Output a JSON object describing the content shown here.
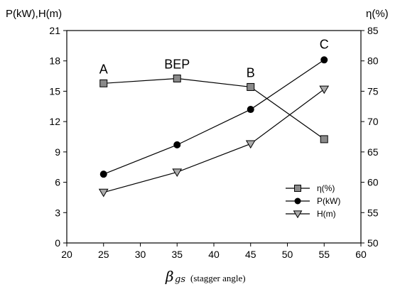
{
  "chart_data": {
    "type": "line",
    "x": [
      25,
      35,
      45,
      55
    ],
    "xlim": [
      20,
      60
    ],
    "x_ticks": [
      "20",
      "25",
      "30",
      "35",
      "40",
      "45",
      "50",
      "55",
      "60"
    ],
    "xlabel": {
      "symbol": "β",
      "subscript": "gs",
      "note": "(stagger angle)"
    },
    "ylabel_left": "P(kW),H(m)",
    "ylim_left": [
      0,
      21
    ],
    "y_ticks_left": [
      "0",
      "3",
      "6",
      "9",
      "12",
      "15",
      "18",
      "21"
    ],
    "ylabel_right": "η(%)",
    "ylim_right": [
      50,
      85
    ],
    "y_ticks_right": [
      "50",
      "55",
      "60",
      "65",
      "70",
      "75",
      "80",
      "85"
    ],
    "grid": false,
    "legend_position": "lower-right",
    "series": [
      {
        "name": "η(%)",
        "axis": "right",
        "marker": "square",
        "color": "#000000",
        "values": [
          76.3,
          77.1,
          75.7,
          67.1
        ]
      },
      {
        "name": "P(kW)",
        "axis": "left",
        "marker": "circle",
        "color": "#000000",
        "values": [
          6.8,
          9.7,
          13.2,
          18.1
        ]
      },
      {
        "name": "H(m)",
        "axis": "left",
        "marker": "triangle-down",
        "color": "#000000",
        "values": [
          5.0,
          7.0,
          9.8,
          15.2
        ]
      }
    ],
    "annotations": [
      {
        "text": "A",
        "x": 25
      },
      {
        "text": "BEP",
        "x": 35
      },
      {
        "text": "B",
        "x": 45
      },
      {
        "text": "C",
        "x": 55
      }
    ]
  }
}
